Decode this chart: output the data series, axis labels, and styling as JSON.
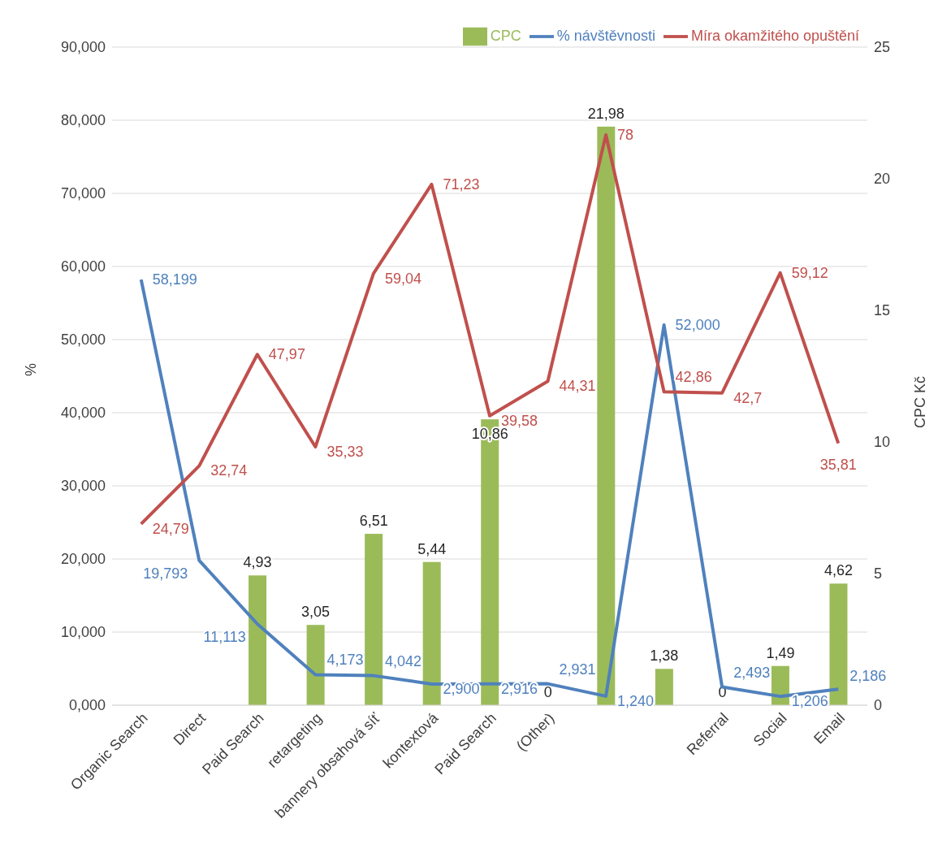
{
  "chart_data": {
    "type": "bar",
    "ylabel": "%",
    "y2label": "CPC Kč",
    "categories": [
      "Organic Search",
      "Direct",
      "Paid Search",
      "retargeting",
      "bannery obsahová síť",
      "kontextová",
      "Paid Search",
      "(Other)",
      null,
      null,
      "Referral",
      "Social",
      "Email"
    ],
    "series": [
      {
        "name": "CPC",
        "axis": "y2",
        "color": "#9bbb59",
        "values": [
          null,
          null,
          4.93,
          3.05,
          6.51,
          5.44,
          10.86,
          0,
          21.98,
          1.38,
          0,
          1.49,
          4.62
        ],
        "value_labels": [
          null,
          null,
          "4,93",
          "3,05",
          "6,51",
          "5,44",
          "10,86",
          "0",
          "21,98",
          "1,38",
          "0",
          "1,49",
          "4,62"
        ]
      },
      {
        "name": "% návštěvnosti",
        "type": "line",
        "color": "#4f81bd",
        "values": [
          58.199,
          19.793,
          11.113,
          4.173,
          4.042,
          2.9,
          2.916,
          2.931,
          1.24,
          52.0,
          2.493,
          1.206,
          2.186
        ],
        "value_labels": [
          "58,199",
          "19,793",
          "11,113",
          "4,173",
          "4,042",
          "2,900",
          "2,916",
          "2,931",
          "1,240",
          "52,000",
          "2,493",
          "1,206",
          "2,186"
        ]
      },
      {
        "name": "Míra okamžitého opuštění",
        "type": "line",
        "color": "#c0504d",
        "values": [
          24.79,
          32.74,
          47.97,
          35.33,
          59.04,
          71.23,
          39.58,
          44.31,
          78,
          42.86,
          42.7,
          59.12,
          35.81
        ],
        "value_labels": [
          "24,79",
          "32,74",
          "47,97",
          "35,33",
          "59,04",
          "71,23",
          "39,58",
          "44,31",
          "78",
          "42,86",
          "42,7",
          "59,12",
          "35,81"
        ]
      }
    ],
    "ylim": [
      0,
      90
    ],
    "yticks": [
      {
        "value": 0,
        "label": "0,000"
      },
      {
        "value": 10,
        "label": "10,000"
      },
      {
        "value": 20,
        "label": "20,000"
      },
      {
        "value": 30,
        "label": "30,000"
      },
      {
        "value": 40,
        "label": "40,000"
      },
      {
        "value": 50,
        "label": "50,000"
      },
      {
        "value": 60,
        "label": "60,000"
      },
      {
        "value": 70,
        "label": "70,000"
      },
      {
        "value": 80,
        "label": "80,000"
      },
      {
        "value": 90,
        "label": "90,000"
      }
    ],
    "y2lim": [
      0,
      25
    ],
    "y2ticks": [
      0,
      5,
      10,
      15,
      20,
      25
    ],
    "grid": "y",
    "legend": "top right",
    "marker": "none",
    "line_style": "solid"
  }
}
